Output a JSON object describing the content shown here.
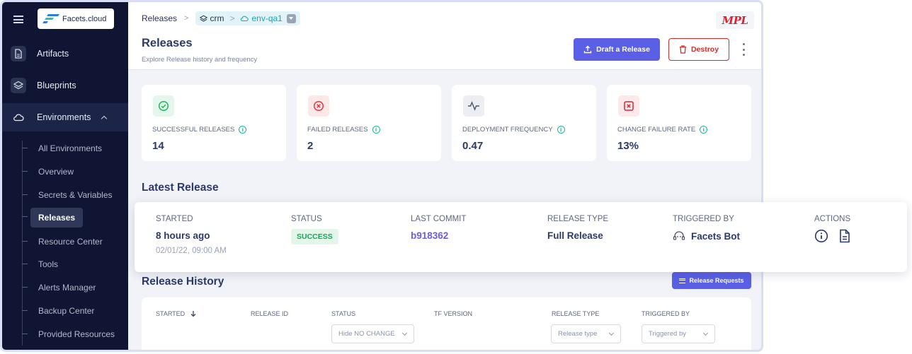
{
  "sidebar": {
    "logo_text": "Facets.cloud",
    "items": [
      {
        "label": "Artifacts"
      },
      {
        "label": "Blueprints"
      },
      {
        "label": "Environments"
      }
    ],
    "sub_items": [
      {
        "label": "All Environments"
      },
      {
        "label": "Overview"
      },
      {
        "label": "Secrets & Variables"
      },
      {
        "label": "Releases"
      },
      {
        "label": "Resource Center"
      },
      {
        "label": "Tools"
      },
      {
        "label": "Alerts Manager"
      },
      {
        "label": "Backup Center"
      },
      {
        "label": "Provided Resources"
      }
    ]
  },
  "breadcrumb": {
    "root": "Releases",
    "project": "crm",
    "environment": "env-qa1"
  },
  "header": {
    "title": "Releases",
    "subtitle": "Explore Release history and frequency",
    "brand": "MPL",
    "draft_label": "Draft a Release",
    "destroy_label": "Destroy"
  },
  "metrics": [
    {
      "label": "SUCCESSFUL RELEASES",
      "value": "14",
      "color": "#1bb65c"
    },
    {
      "label": "FAILED RELEASES",
      "value": "2",
      "color": "#e23b3b"
    },
    {
      "label": "DEPLOYMENT FREQUENCY",
      "value": "0.47",
      "color": "#5d6680"
    },
    {
      "label": "CHANGE FAILURE RATE",
      "value": "13%",
      "color": "#d42a3a"
    }
  ],
  "latest": {
    "title": "Latest Release",
    "started_head": "STARTED",
    "started_value": "8 hours ago",
    "started_date": "02/01/22, 09:00 AM",
    "status_head": "STATUS",
    "status_value": "SUCCESS",
    "commit_head": "LAST COMMIT",
    "commit_value": "b918362",
    "type_head": "RELEASE TYPE",
    "type_value": "Full Release",
    "trigger_head": "TRIGGERED BY",
    "trigger_value": "Facets Bot",
    "actions_head": "ACTIONS"
  },
  "history": {
    "title": "Release History",
    "requests_label": "Release Requests",
    "columns": [
      "STARTED",
      "RELEASE ID",
      "STATUS",
      "TF VERSION",
      "RELEASE TYPE",
      "TRIGGERED BY"
    ],
    "filters": {
      "status": "Hide NO CHANGE",
      "release_type": "Release type",
      "triggered_by": "Triggered by"
    }
  }
}
